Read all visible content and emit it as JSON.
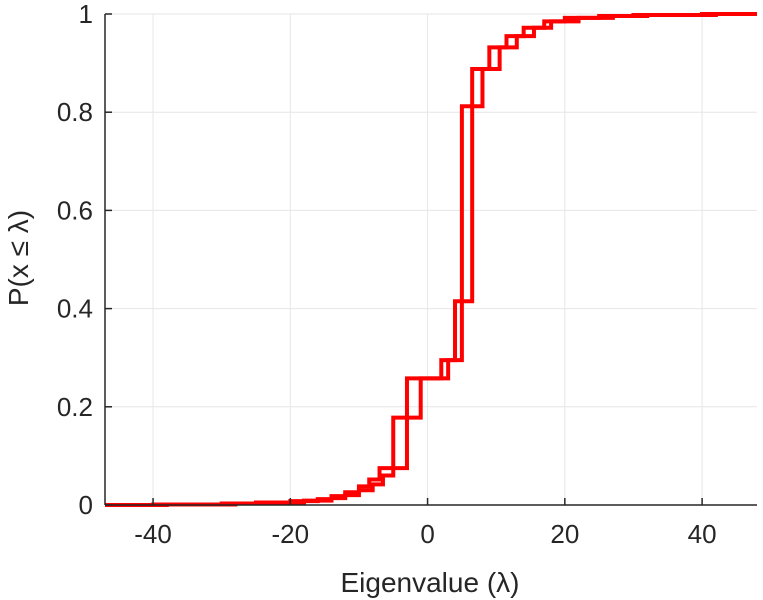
{
  "chart_data": {
    "type": "line",
    "title": "",
    "xlabel": "Eigenvalue (λ)",
    "ylabel": "P(x ≤ λ)",
    "xlim": [
      -47,
      48
    ],
    "ylim": [
      0,
      1
    ],
    "xticks": [
      -40,
      -20,
      0,
      20,
      40
    ],
    "xtick_labels": [
      "-40",
      "-20",
      "0",
      "20",
      "40"
    ],
    "yticks": [
      0,
      0.2,
      0.4,
      0.6,
      0.8,
      1
    ],
    "ytick_labels": [
      "0",
      "0.2",
      "0.4",
      "0.6",
      "0.8",
      "1"
    ],
    "grid": true,
    "legend": "none",
    "series": [
      {
        "color": "#ff0000",
        "style": "stairs",
        "x": [
          -47,
          -40,
          -30,
          -25,
          -20,
          -16,
          -14,
          -12,
          -10,
          -8.5,
          -7,
          -5,
          -3,
          0,
          2,
          4,
          5,
          6.5,
          9,
          11.5,
          14,
          17,
          20,
          25,
          30,
          40,
          48
        ],
        "y": [
          0,
          0.001,
          0.003,
          0.005,
          0.008,
          0.012,
          0.018,
          0.026,
          0.038,
          0.052,
          0.075,
          0.178,
          0.258,
          0.258,
          0.295,
          0.415,
          0.812,
          0.888,
          0.932,
          0.955,
          0.972,
          0.985,
          0.992,
          0.996,
          0.998,
          1.0,
          1.0
        ]
      },
      {
        "color": "#ff0000",
        "style": "stairs",
        "x": [
          -47,
          -38,
          -28,
          -23,
          -18,
          -14,
          -12,
          -10,
          -8,
          -6.5,
          -5,
          -3,
          -1,
          1,
          3,
          5,
          6.5,
          8,
          10.5,
          13,
          15.5,
          18,
          22,
          27,
          32,
          42,
          48
        ],
        "y": [
          0,
          0.001,
          0.003,
          0.005,
          0.009,
          0.014,
          0.02,
          0.03,
          0.042,
          0.06,
          0.075,
          0.178,
          0.258,
          0.258,
          0.295,
          0.415,
          0.812,
          0.888,
          0.932,
          0.955,
          0.972,
          0.985,
          0.992,
          0.996,
          0.998,
          1.0,
          1.0
        ]
      }
    ]
  }
}
